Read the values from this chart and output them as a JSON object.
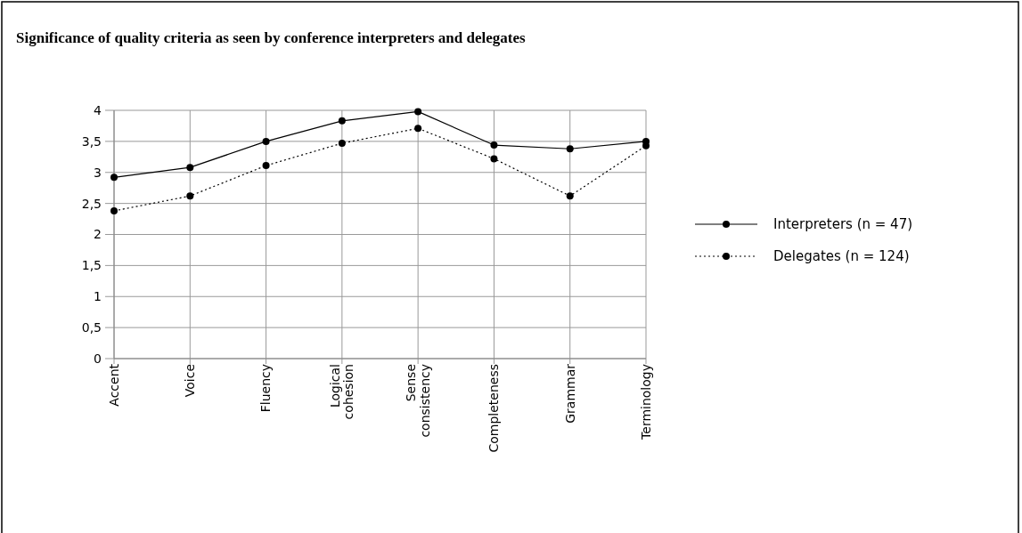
{
  "chart_data": {
    "type": "line",
    "title": "Significance of quality criteria as seen by conference interpreters and delegates",
    "categories": [
      "Accent",
      "Voice",
      "Fluency",
      "Logical cohesion",
      "Sense consistency",
      "Completeness",
      "Grammar",
      "Terminology"
    ],
    "series": [
      {
        "name": "Interpreters (n = 47)",
        "color": "#000000",
        "line_style": "solid",
        "values": [
          2.92,
          3.08,
          3.5,
          3.83,
          3.98,
          3.44,
          3.38,
          3.5
        ]
      },
      {
        "name": "Delegates (n = 124)",
        "color": "#000000",
        "line_style": "dotted",
        "values": [
          2.38,
          2.62,
          3.11,
          3.47,
          3.71,
          3.22,
          2.62,
          3.43
        ]
      }
    ],
    "ylim": [
      0,
      4
    ],
    "yticks": [
      0,
      {
        "value": 0.5,
        "label": "0,5"
      },
      1,
      {
        "value": 1.5,
        "label": "1,5"
      },
      2,
      {
        "value": 2.5,
        "label": "2,5"
      },
      3,
      {
        "value": 3.5,
        "label": "3,5"
      },
      4
    ],
    "grid": true,
    "legend": "right",
    "marker": "circle"
  }
}
